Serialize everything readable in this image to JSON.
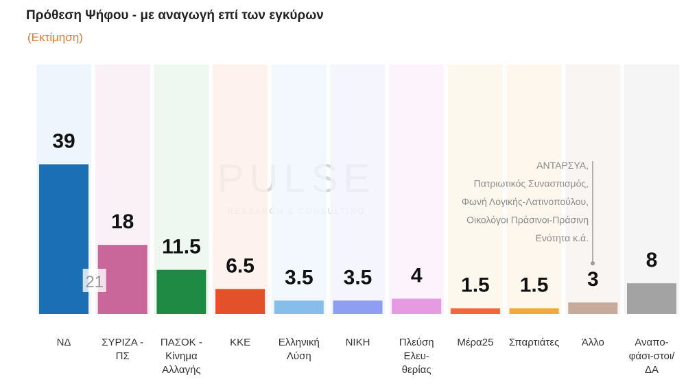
{
  "chart_data": {
    "type": "bar",
    "title": "Πρόθεση Ψήφου - με αναγωγή επί των εγκύρων",
    "subtitle": "(Εκτίμηση)",
    "categories": [
      "ΝΔ",
      "ΣΥΡΙΖΑ - ΠΣ",
      "ΠΑΣΟΚ - Κίνημα Αλλαγής",
      "ΚΚΕ",
      "Ελληνική Λύση",
      "ΝΙΚΗ",
      "Πλεύση Ελευ-θερίας",
      "Μέρα25",
      "Σπαρτιάτες",
      "Άλλο",
      "Αναπο-φάσι-στοι/ΔΑ"
    ],
    "values": [
      39,
      18,
      11.5,
      6.5,
      3.5,
      3.5,
      4,
      1.5,
      1.5,
      3,
      8
    ],
    "colors": [
      "#1a6fb5",
      "#c9669a",
      "#1f8a44",
      "#e2512a",
      "#86bdea",
      "#8e9ef0",
      "#e69ae2",
      "#f2663a",
      "#f2a93a",
      "#c6aa9c",
      "#a3a3a3"
    ],
    "column_colors": [
      "#eaf3fb",
      "#f8eef4",
      "#ebf5ee",
      "#fcefe9",
      "#eff6fc",
      "#f1f3fd",
      "#fbf0fb",
      "#fdf6e8",
      "#fdf5e8",
      "#f7f2f0",
      "#f2f2f2"
    ],
    "ylim": [
      0,
      65
    ],
    "annotation_box": "21",
    "note_lines": [
      "ΑΝΤΑΡΣΥΑ,",
      "Πατριωτικός Συνασπισμός,",
      "Φωνή Λογικής-Λατινοπούλου,",
      "Οικολόγοι Πράσινοι-Πράσινη",
      "Ενότητα κ.ά."
    ],
    "watermark": "PULSE",
    "watermark_sub": "RESEARCH & CONSULTING"
  }
}
